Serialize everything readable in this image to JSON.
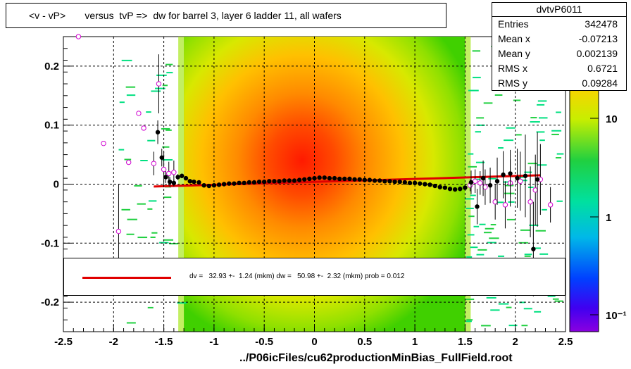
{
  "title": "<v - vP>       versus  tvP =>  dw for barrel 3, layer 6 ladder 11, all wafers",
  "stats": {
    "name": "dvtvP6011",
    "rows": [
      {
        "label": "Entries",
        "value": "342478"
      },
      {
        "label": "Mean x",
        "value": "-0.07213"
      },
      {
        "label": "Mean y",
        "value": "0.002139"
      },
      {
        "label": "RMS x",
        "value": "0.6721"
      },
      {
        "label": "RMS y",
        "value": "0.09284"
      }
    ]
  },
  "legend": {
    "text": "dv =   32.93 +-  1.24 (mkm) dw =   50.98 +-  2.32 (mkm) prob = 0.012",
    "line_color": "#e00000"
  },
  "x_title": "../P06icFiles/cu62productionMinBias_FullField.root",
  "colorbar": {
    "tick_labels": [
      "10",
      "1",
      "10⁻¹"
    ]
  },
  "chart_data": {
    "type": "heatmap",
    "xlim": [
      -2.5,
      2.5
    ],
    "ylim": [
      -0.25,
      0.25
    ],
    "x_ticks": [
      -2.5,
      -2,
      -1.5,
      -1,
      -0.5,
      0,
      0.5,
      1,
      1.5,
      2,
      2.5
    ],
    "x_tick_labels": [
      "-2.5",
      "-2",
      "-1.5",
      "-1",
      "-0.5",
      "0",
      "0.5",
      "1",
      "1.5",
      "2",
      "2.5"
    ],
    "y_ticks": [
      -0.2,
      -0.1,
      0,
      0.1,
      0.2
    ],
    "y_tick_labels": [
      "-0.2",
      "-0.1",
      "0",
      "0.1",
      "0.2"
    ],
    "grid": true,
    "colorbar_scale": "log",
    "density_region": {
      "x": [
        -1.3,
        1.5
      ],
      "peak_x": -0.1,
      "peak_y": 0.02
    },
    "profile_black": {
      "x": [
        -1.56,
        -1.52,
        -1.48,
        -1.44,
        -1.4,
        -1.36,
        -1.32,
        -1.28,
        -1.24,
        -1.2,
        -1.15,
        -1.1,
        -1.05,
        -1.0,
        -0.95,
        -0.9,
        -0.85,
        -0.8,
        -0.75,
        -0.7,
        -0.65,
        -0.6,
        -0.55,
        -0.5,
        -0.45,
        -0.4,
        -0.35,
        -0.3,
        -0.25,
        -0.2,
        -0.15,
        -0.1,
        -0.05,
        0.0,
        0.05,
        0.1,
        0.15,
        0.2,
        0.25,
        0.3,
        0.35,
        0.4,
        0.45,
        0.5,
        0.55,
        0.6,
        0.65,
        0.7,
        0.75,
        0.8,
        0.85,
        0.9,
        0.95,
        1.0,
        1.05,
        1.1,
        1.15,
        1.2,
        1.25,
        1.3,
        1.35,
        1.4,
        1.45,
        1.5,
        1.56,
        1.62,
        1.68,
        1.75,
        1.82,
        1.88,
        1.95,
        2.02,
        2.1,
        2.18,
        2.22
      ],
      "y": [
        0.088,
        0.045,
        0.012,
        0.004,
        0.002,
        0.012,
        0.014,
        0.01,
        0.005,
        0.004,
        0.003,
        -0.002,
        -0.003,
        -0.002,
        -0.001,
        0.0,
        0.001,
        0.001,
        0.002,
        0.002,
        0.003,
        0.003,
        0.004,
        0.004,
        0.005,
        0.005,
        0.005,
        0.006,
        0.006,
        0.006,
        0.007,
        0.008,
        0.009,
        0.01,
        0.011,
        0.011,
        0.01,
        0.01,
        0.009,
        0.009,
        0.009,
        0.008,
        0.008,
        0.007,
        0.007,
        0.006,
        0.006,
        0.005,
        0.005,
        0.004,
        0.004,
        0.003,
        0.002,
        0.002,
        0.001,
        0.0,
        -0.001,
        -0.003,
        -0.005,
        -0.006,
        -0.008,
        -0.009,
        -0.008,
        -0.006,
        0.003,
        -0.038,
        0.01,
        -0.002,
        0.005,
        0.016,
        0.018,
        0.01,
        0.014,
        -0.11,
        0.008
      ],
      "err": [
        0.02,
        0.015,
        0.01,
        0.008,
        0.006,
        0.005,
        0.004,
        0.003,
        0.003,
        0.003,
        0.002,
        0.002,
        0.002,
        0.002,
        0.002,
        0.002,
        0.002,
        0.002,
        0.002,
        0.002,
        0.002,
        0.002,
        0.002,
        0.002,
        0.002,
        0.002,
        0.002,
        0.002,
        0.002,
        0.002,
        0.002,
        0.002,
        0.002,
        0.002,
        0.002,
        0.002,
        0.002,
        0.002,
        0.002,
        0.002,
        0.002,
        0.002,
        0.002,
        0.002,
        0.002,
        0.002,
        0.002,
        0.002,
        0.002,
        0.002,
        0.002,
        0.002,
        0.002,
        0.002,
        0.002,
        0.002,
        0.002,
        0.002,
        0.002,
        0.003,
        0.003,
        0.003,
        0.004,
        0.005,
        0.02,
        0.03,
        0.03,
        0.03,
        0.04,
        0.04,
        0.04,
        0.05,
        0.07,
        0.08,
        0.08
      ]
    },
    "profile_open": {
      "x": [
        -2.35,
        -2.1,
        -1.95,
        -1.85,
        -1.75,
        -1.7,
        -1.6,
        -1.55,
        -1.5,
        -1.45,
        -1.4,
        1.55,
        1.6,
        1.65,
        1.7,
        1.8,
        1.9,
        1.95,
        2.05,
        2.15,
        2.2,
        2.25,
        2.35
      ],
      "y": [
        0.25,
        0.069,
        -0.08,
        0.037,
        0.12,
        0.095,
        0.035,
        0.17,
        0.025,
        0.018,
        0.02,
        -0.002,
        0.005,
        0.002,
        -0.005,
        -0.03,
        -0.035,
        0.002,
        0.005,
        -0.03,
        -0.01,
        0.008,
        -0.035
      ],
      "err": [
        0.003,
        0.002,
        0.08,
        0.002,
        0.002,
        0.002,
        0.02,
        0.05,
        0.03,
        0.02,
        0.02,
        0.01,
        0.02,
        0.02,
        0.03,
        0.03,
        0.04,
        0.04,
        0.05,
        0.06,
        0.06,
        0.06,
        0.03
      ]
    },
    "fit_line": {
      "x": [
        -1.6,
        2.25
      ],
      "y": [
        -0.004,
        0.015
      ]
    }
  }
}
